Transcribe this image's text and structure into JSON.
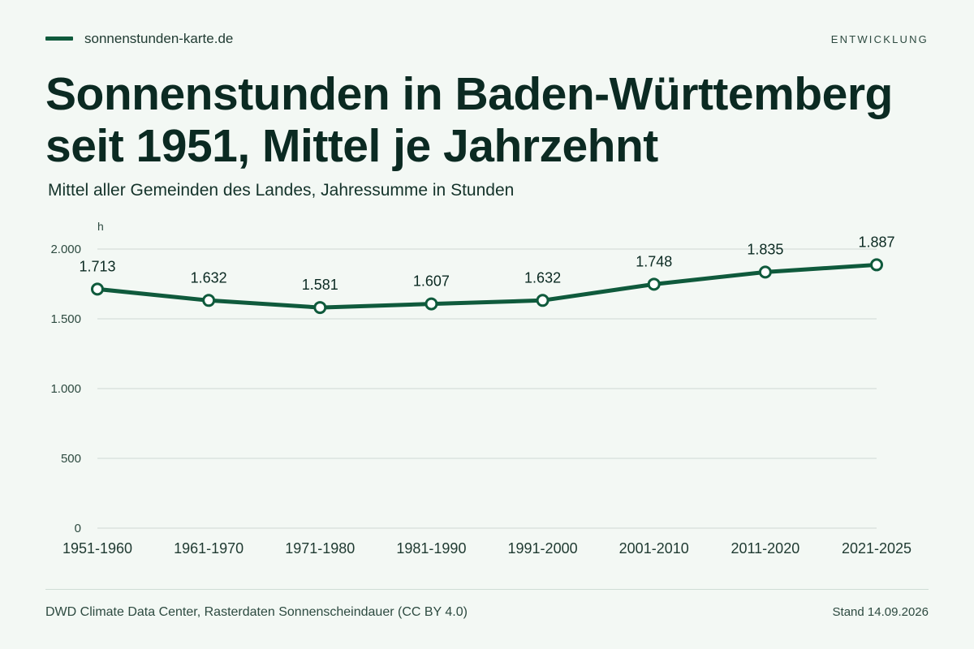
{
  "header": {
    "brand": "sonnenstunden-karte.de",
    "section_tag": "ENTWICKLUNG",
    "title": "Sonnenstunden in Baden-Württemberg seit 1951, Mittel je Jahrzehnt",
    "subtitle": "Mittel aller Gemeinden des Landes, Jahressumme in Stunden"
  },
  "footer": {
    "source": "DWD Climate Data Center, Rasterdaten Sonnenscheindauer (CC BY 4.0)",
    "stand": "Stand 14.09.2026"
  },
  "colors": {
    "line": "#0f5a3c",
    "grid": "#cfd9d3",
    "background": "#f3f8f4"
  },
  "chart_data": {
    "type": "line",
    "title": "Sonnenstunden in Baden-Württemberg seit 1951, Mittel je Jahrzehnt",
    "subtitle": "Mittel aller Gemeinden des Landes, Jahressumme in Stunden",
    "ylabel": "h",
    "xlabel": "",
    "categories": [
      "1951-1960",
      "1961-1970",
      "1971-1980",
      "1981-1990",
      "1991-2000",
      "2001-2010",
      "2011-2020",
      "2021-2025"
    ],
    "values": [
      1713,
      1632,
      1581,
      1607,
      1632,
      1748,
      1835,
      1887
    ],
    "value_labels": [
      "1.713",
      "1.632",
      "1.581",
      "1.607",
      "1.632",
      "1.748",
      "1.835",
      "1.887"
    ],
    "yticks": [
      0,
      500,
      1000,
      1500,
      2000
    ],
    "ytick_labels": [
      "0",
      "500",
      "1.000",
      "1.500",
      "2.000"
    ],
    "ylim": [
      0,
      2000
    ],
    "grid": true,
    "legend": false
  }
}
